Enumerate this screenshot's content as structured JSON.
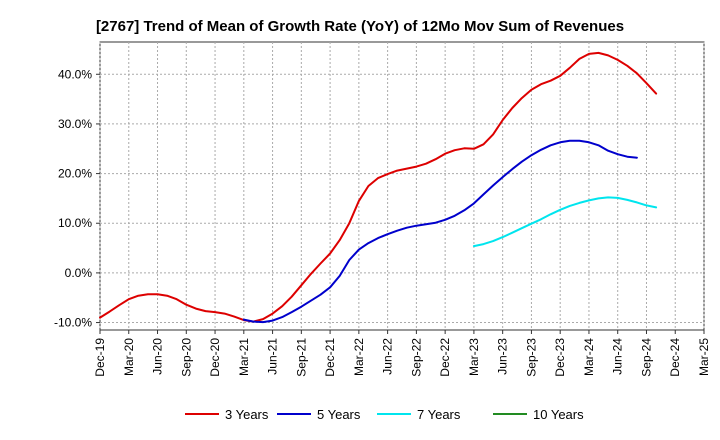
{
  "chart_data": {
    "type": "line",
    "title": "[2767]  Trend of Mean of Growth Rate (YoY) of 12Mo Mov Sum of Revenues",
    "xlabel": "",
    "ylabel": "",
    "ylim": [
      -11.5,
      46.5
    ],
    "y_ticks": [
      -10,
      0,
      10,
      20,
      30,
      40
    ],
    "y_tick_labels": [
      "-10.0%",
      "0.0%",
      "10.0%",
      "20.0%",
      "30.0%",
      "40.0%"
    ],
    "x_tick_labels": [
      "Dec-19",
      "Mar-20",
      "Jun-20",
      "Sep-20",
      "Dec-20",
      "Mar-21",
      "Jun-21",
      "Sep-21",
      "Dec-21",
      "Mar-22",
      "Jun-22",
      "Sep-22",
      "Dec-22",
      "Mar-23",
      "Jun-23",
      "Sep-23",
      "Dec-23",
      "Mar-24",
      "Jun-24",
      "Sep-24",
      "Dec-24",
      "Mar-25"
    ],
    "x_range_months": [
      0,
      63
    ],
    "grid": true,
    "legend_position": "bottom",
    "series": [
      {
        "name": "3 Years",
        "color": "#dd0000",
        "start_month": 0,
        "values": [
          -9.0,
          -7.8,
          -6.5,
          -5.3,
          -4.6,
          -4.3,
          -4.3,
          -4.6,
          -5.3,
          -6.4,
          -7.2,
          -7.7,
          -7.9,
          -8.2,
          -8.8,
          -9.5,
          -9.8,
          -9.3,
          -8.2,
          -6.7,
          -4.8,
          -2.5,
          -0.2,
          1.9,
          3.9,
          6.6,
          10.0,
          14.5,
          17.5,
          19.1,
          19.9,
          20.6,
          21.0,
          21.4,
          22.0,
          22.9,
          24.0,
          24.7,
          25.1,
          25.0,
          25.9,
          27.9,
          30.8,
          33.2,
          35.2,
          36.9,
          38.0,
          38.7,
          39.7,
          41.3,
          43.1,
          44.1,
          44.3,
          43.8,
          42.9,
          41.7,
          40.2,
          38.2,
          36.1
        ]
      },
      {
        "name": "5 Years",
        "color": "#0000cc",
        "start_month": 15,
        "values": [
          -9.4,
          -9.8,
          -9.9,
          -9.6,
          -8.9,
          -7.9,
          -6.8,
          -5.6,
          -4.4,
          -2.9,
          -0.6,
          2.6,
          4.7,
          6.0,
          7.0,
          7.8,
          8.5,
          9.1,
          9.5,
          9.8,
          10.1,
          10.7,
          11.5,
          12.6,
          14.0,
          15.8,
          17.6,
          19.3,
          20.9,
          22.4,
          23.7,
          24.8,
          25.7,
          26.3,
          26.6,
          26.6,
          26.3,
          25.7,
          24.6,
          23.9,
          23.4,
          23.2
        ]
      },
      {
        "name": "7 Years",
        "color": "#00e5ee",
        "start_month": 39,
        "values": [
          5.4,
          5.8,
          6.4,
          7.2,
          8.1,
          9.0,
          9.9,
          10.8,
          11.8,
          12.7,
          13.5,
          14.1,
          14.6,
          15.0,
          15.2,
          15.1,
          14.7,
          14.2,
          13.6,
          13.2
        ]
      },
      {
        "name": "10 Years",
        "color": "#228b22",
        "start_month": 0,
        "values": []
      }
    ]
  }
}
